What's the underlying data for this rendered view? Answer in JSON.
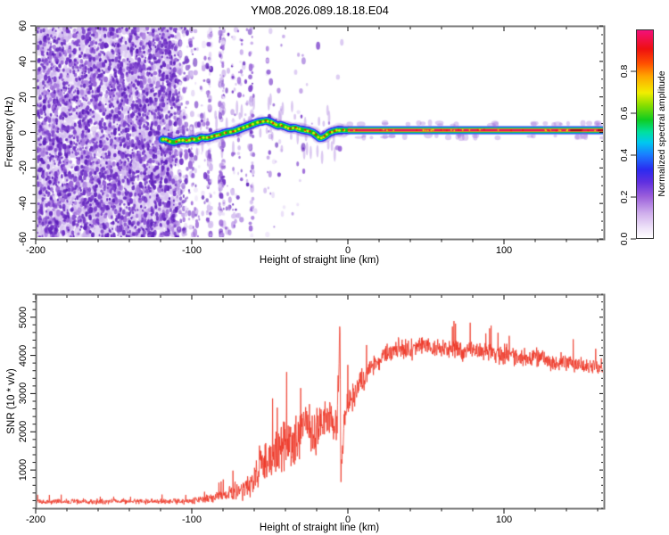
{
  "title": "YM08.2026.089.18.18.E04",
  "colors": {
    "frame": "#787878",
    "tick": "#222222",
    "text": "#000000",
    "background": "#ffffff",
    "snr_line": "#ee3524"
  },
  "chart_data": [
    {
      "type": "heatmap",
      "id": "spectrogram",
      "title": "YM08.2026.089.18.18.E04",
      "xlabel": "Height of straight line (km)",
      "ylabel": "Frequency (Hz)",
      "xlim": [
        -200,
        164
      ],
      "ylim": [
        -60,
        60
      ],
      "xticks": [
        -200,
        -100,
        0,
        100
      ],
      "xminor": 20,
      "yticks": [
        60,
        40,
        20,
        0,
        -20,
        -40,
        -60
      ],
      "yminor": 5,
      "grid": false,
      "colorbar": {
        "label": "Normalized spectral amplitude",
        "ticks": [
          "0.0",
          "0.2",
          "0.4",
          "0.6",
          "0.8"
        ],
        "range": [
          0,
          1
        ],
        "stops": [
          [
            "#ffffff",
            0
          ],
          [
            "#eee2f8",
            0.05
          ],
          [
            "#cfaeec",
            0.12
          ],
          [
            "#9b5fdb",
            0.2
          ],
          [
            "#5f2fe0",
            0.27
          ],
          [
            "#2b2bf0",
            0.33
          ],
          [
            "#1a7cff",
            0.4
          ],
          [
            "#00c8f0",
            0.46
          ],
          [
            "#00e0a0",
            0.51
          ],
          [
            "#10cc20",
            0.57
          ],
          [
            "#8ade00",
            0.64
          ],
          [
            "#f2ee00",
            0.7
          ],
          [
            "#ffa400",
            0.78
          ],
          [
            "#ff5000",
            0.84
          ],
          [
            "#ee1010",
            0.91
          ],
          [
            "#f3107a",
            1.0
          ]
        ]
      },
      "signal_trace": [
        [
          -121,
          -5
        ],
        [
          -118,
          -4
        ],
        [
          -115,
          -5
        ],
        [
          -112,
          -6
        ],
        [
          -109,
          -5
        ],
        [
          -106,
          -4.5
        ],
        [
          -103,
          -5
        ],
        [
          -100,
          -4
        ],
        [
          -97,
          -4.5
        ],
        [
          -94,
          -3
        ],
        [
          -91,
          -3.5
        ],
        [
          -88,
          -3
        ],
        [
          -85,
          -2
        ],
        [
          -82,
          -1.5
        ],
        [
          -79,
          -0.5
        ],
        [
          -76,
          0
        ],
        [
          -73,
          0.5
        ],
        [
          -70,
          1.5
        ],
        [
          -67,
          2.5
        ],
        [
          -64,
          3.5
        ],
        [
          -61,
          4.5
        ],
        [
          -58,
          5.5
        ],
        [
          -55,
          6
        ],
        [
          -52,
          6.5
        ],
        [
          -49,
          5.5
        ],
        [
          -47,
          4.5
        ],
        [
          -45,
          3.5
        ],
        [
          -43,
          4
        ],
        [
          -40,
          3
        ],
        [
          -37,
          2
        ],
        [
          -34,
          2.5
        ],
        [
          -31,
          1.5
        ],
        [
          -28,
          1
        ],
        [
          -25,
          0.5
        ],
        [
          -22,
          -0.5
        ],
        [
          -20,
          -2
        ],
        [
          -18,
          -3.5
        ],
        [
          -16,
          -3
        ],
        [
          -14,
          -2
        ],
        [
          -12,
          -0.5
        ],
        [
          -9,
          0.5
        ],
        [
          -6,
          1
        ],
        [
          -3,
          1
        ],
        [
          0,
          1
        ]
      ],
      "flat_band": {
        "start_km": 0,
        "center_hz": 1
      },
      "noise": {
        "pale": [
          "#e7daf7",
          "#d7c3f1",
          "#c9aeeb"
        ],
        "mid": [
          "#ab7fe0",
          "#9a66d8"
        ],
        "dark": [
          "#8148ce",
          "#6f30c6",
          "#5f22bb"
        ],
        "regions": [
          [
            -200,
            -110,
            1.0
          ],
          [
            -110,
            -95,
            0.55
          ],
          [
            -95,
            -75,
            0.35
          ],
          [
            -75,
            -60,
            0.18
          ],
          [
            -60,
            -45,
            0.07
          ],
          [
            -45,
            -28,
            0.03
          ],
          [
            -28,
            -2,
            0.006
          ]
        ]
      }
    },
    {
      "type": "line",
      "id": "snr",
      "xlabel": "Height of straight line (km)",
      "ylabel": "SNR (10 * v/v)",
      "xlim": [
        -200,
        164
      ],
      "ylim": [
        0,
        5600
      ],
      "xticks": [
        -200,
        -100,
        0,
        100
      ],
      "xminor": 20,
      "yticks": [
        1000,
        2000,
        3000,
        4000,
        5000
      ],
      "yminor": 200,
      "grid": false,
      "line_color": "#ee3524",
      "envelope": [
        [
          -200,
          150,
          90
        ],
        [
          -160,
          150,
          90
        ],
        [
          -130,
          155,
          90
        ],
        [
          -110,
          165,
          100
        ],
        [
          -100,
          180,
          110
        ],
        [
          -92,
          210,
          130
        ],
        [
          -86,
          280,
          170
        ],
        [
          -82,
          330,
          200
        ],
        [
          -78,
          300,
          190
        ],
        [
          -74,
          380,
          260
        ],
        [
          -71,
          480,
          330
        ],
        [
          -68,
          420,
          300
        ],
        [
          -65,
          560,
          380
        ],
        [
          -62,
          520,
          360
        ],
        [
          -59,
          800,
          500
        ],
        [
          -56,
          1100,
          650
        ],
        [
          -53,
          1300,
          700
        ],
        [
          -50,
          1150,
          680
        ],
        [
          -47,
          1400,
          750
        ],
        [
          -44,
          1600,
          820
        ],
        [
          -41,
          1500,
          820
        ],
        [
          -38,
          1800,
          850
        ],
        [
          -35,
          1650,
          800
        ],
        [
          -32,
          1900,
          780
        ],
        [
          -29,
          2100,
          720
        ],
        [
          -26,
          2300,
          660
        ],
        [
          -23,
          2000,
          760
        ],
        [
          -20,
          1950,
          780
        ],
        [
          -17,
          2250,
          700
        ],
        [
          -14,
          2400,
          640
        ],
        [
          -11,
          2450,
          620
        ],
        [
          -8,
          2250,
          700
        ],
        [
          -6.5,
          2600,
          750
        ],
        [
          -5.8,
          3200,
          900
        ],
        [
          -5.2,
          5300,
          700
        ],
        [
          -4.8,
          3000,
          1200
        ],
        [
          -4.4,
          850,
          380
        ],
        [
          -3.8,
          1300,
          520
        ],
        [
          -3,
          1800,
          560
        ],
        [
          -2,
          2400,
          500
        ],
        [
          -1,
          2600,
          460
        ],
        [
          0,
          2750,
          460
        ],
        [
          3,
          2950,
          450
        ],
        [
          6,
          3150,
          430
        ],
        [
          9,
          3350,
          410
        ],
        [
          12,
          3550,
          390
        ],
        [
          15,
          3700,
          370
        ],
        [
          18,
          3850,
          350
        ],
        [
          22,
          4000,
          340
        ],
        [
          26,
          4100,
          330
        ],
        [
          30,
          4150,
          325
        ],
        [
          35,
          4200,
          320
        ],
        [
          40,
          4160,
          330
        ],
        [
          45,
          4210,
          320
        ],
        [
          50,
          4250,
          315
        ],
        [
          55,
          4200,
          320
        ],
        [
          60,
          4160,
          320
        ],
        [
          65,
          4200,
          310
        ],
        [
          70,
          4150,
          315
        ],
        [
          75,
          4110,
          318
        ],
        [
          80,
          4150,
          312
        ],
        [
          85,
          4100,
          318
        ],
        [
          90,
          4140,
          312
        ],
        [
          95,
          4050,
          318
        ],
        [
          100,
          4010,
          312
        ],
        [
          105,
          4050,
          305
        ],
        [
          110,
          3960,
          310
        ],
        [
          115,
          3910,
          305
        ],
        [
          120,
          3950,
          302
        ],
        [
          125,
          3900,
          300
        ],
        [
          130,
          3860,
          300
        ],
        [
          135,
          3810,
          300
        ],
        [
          140,
          3850,
          295
        ],
        [
          145,
          3800,
          292
        ],
        [
          150,
          3760,
          290
        ],
        [
          155,
          3710,
          290
        ],
        [
          160,
          3700,
          285
        ],
        [
          164,
          3660,
          285
        ]
      ]
    }
  ]
}
